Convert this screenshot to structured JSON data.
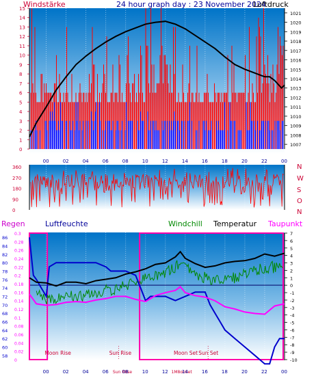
{
  "header": {
    "left_label": "Windstärke",
    "title": "24 hour graph day : 23 November 2024",
    "right_label": "Luftdruck"
  },
  "colors": {
    "wind_red": "#ff0000",
    "wind_blue": "#0000ff",
    "axis_red": "#cc0033",
    "axis_blue": "#000099",
    "humidity_blue": "#0000cc",
    "windchill_green": "#008800",
    "dewpoint_magenta": "#ff00ff",
    "temperature_black": "#000000"
  },
  "chart_data": [
    {
      "id": "wind-pressure",
      "type": "bar",
      "title": "24 hour graph day : 23 November 2024",
      "x_ticks": [
        "00",
        "02",
        "04",
        "06",
        "08",
        "10",
        "12",
        "14",
        "16",
        "18",
        "20",
        "22",
        "00"
      ],
      "left_axis": {
        "label": "Windstärke",
        "ticks": [
          0,
          1,
          2,
          3,
          4,
          5,
          6,
          7,
          8,
          9,
          10,
          11,
          12,
          13,
          14,
          15
        ],
        "ylim": [
          0,
          15
        ]
      },
      "right_axis": {
        "label": "Luftdruck",
        "ticks": [
          1007,
          1008,
          1009,
          1010,
          1011,
          1012,
          1013,
          1014,
          1015,
          1016,
          1017,
          1018,
          1019,
          1020,
          1021
        ],
        "ylim": [
          1006.5,
          1021.5
        ]
      },
      "pressure_series": {
        "name": "Luftdruck",
        "hours": [
          -1.7,
          -1,
          0,
          1,
          2,
          3,
          4,
          5,
          6,
          7,
          8,
          9,
          9.5,
          10,
          11,
          12,
          13,
          14,
          15,
          16,
          17,
          18,
          19,
          20,
          21,
          22,
          22.5,
          23,
          23.7,
          24
        ],
        "values": [
          1007.8,
          1009.3,
          1011.0,
          1012.8,
          1014.2,
          1015.5,
          1016.4,
          1017.2,
          1017.9,
          1018.5,
          1019.0,
          1019.4,
          1019.6,
          1019.8,
          1020.0,
          1020.1,
          1019.8,
          1019.3,
          1018.6,
          1017.9,
          1017.2,
          1016.3,
          1015.5,
          1015.0,
          1014.6,
          1014.2,
          1014.2,
          1013.8,
          1013.0,
          1013.3
        ]
      },
      "wind_gust_level": 5,
      "wind_avg_level": 3
    },
    {
      "id": "wind-direction",
      "type": "line",
      "y_ticks": [
        0,
        90,
        180,
        270,
        360
      ],
      "ylim": [
        0,
        360
      ],
      "direction_labels": [
        "N",
        "W",
        "S",
        "O",
        "N"
      ]
    },
    {
      "id": "rain-humidity-temp",
      "type": "line",
      "x_ticks": [
        "00",
        "02",
        "04",
        "06",
        "08",
        "10",
        "12",
        "14",
        "16",
        "18",
        "20",
        "22",
        "00"
      ],
      "humidity_axis": {
        "label": "Luftfeuchte",
        "ticks": [
          58,
          60,
          62,
          64,
          66,
          68,
          70,
          72,
          74,
          76,
          78,
          80,
          82,
          84,
          86
        ],
        "ylim": [
          57,
          87
        ]
      },
      "rain_axis": {
        "label": "Regen",
        "ticks": [
          0,
          0.02,
          0.04,
          0.06,
          0.08,
          0.1,
          0.12,
          0.14,
          0.16,
          0.18,
          0.2,
          0.22,
          0.24,
          0.26,
          0.28,
          0.3
        ],
        "ylim": [
          0,
          0.3
        ]
      },
      "temp_axis": {
        "ticks": [
          7,
          6,
          5,
          4,
          3,
          2,
          1,
          0,
          -1,
          -2,
          -3,
          -4,
          -5,
          -6,
          -7,
          -8,
          -9,
          -10
        ],
        "ylim": [
          -10,
          7
        ]
      },
      "legend": {
        "windchill": "Windchill",
        "temperature": "Temperatur",
        "dewpoint": "Taupunkt"
      },
      "temperature": {
        "hours": [
          -1.7,
          -1,
          0,
          1,
          2,
          3,
          4,
          5,
          6,
          7,
          8,
          9,
          10,
          11,
          12,
          13,
          13.5,
          14,
          15,
          16,
          17,
          18,
          19,
          20,
          21,
          22,
          23,
          24
        ],
        "values": [
          1.0,
          0.4,
          0.3,
          -0.1,
          0.4,
          0.4,
          0.2,
          0.6,
          0.8,
          1.0,
          1.5,
          1.8,
          2.2,
          2.8,
          3.0,
          3.8,
          4.5,
          3.6,
          2.9,
          2.4,
          2.6,
          3.0,
          3.2,
          3.3,
          3.6,
          4.2,
          3.9,
          4.3
        ]
      },
      "windchill": {
        "hours": [
          -1.7,
          -1,
          0,
          1,
          2,
          3,
          4,
          5,
          6,
          7,
          8,
          9,
          10,
          11,
          12,
          13,
          13.5,
          14,
          15,
          16,
          17,
          18,
          19,
          20,
          21,
          22,
          23,
          24
        ],
        "values": [
          0.5,
          -0.5,
          -1.0,
          -0.9,
          -0.3,
          -0.8,
          -0.6,
          -0.3,
          0.1,
          0.3,
          0.8,
          1.2,
          1.6,
          2.2,
          2.5,
          3.2,
          4.0,
          3.1,
          2.4,
          1.8,
          1.5,
          1.5,
          1.8,
          2.2,
          2.8,
          3.2,
          3.2,
          3.5
        ]
      },
      "dewpoint": {
        "hours": [
          -1.7,
          -1,
          0,
          1,
          2,
          3,
          4,
          5,
          6,
          7,
          8,
          9,
          10,
          11,
          12,
          13,
          13.5,
          14,
          15,
          16,
          17,
          18,
          19,
          20,
          21,
          22,
          23,
          24
        ],
        "values": [
          -1.2,
          -2.5,
          -2.7,
          -2.6,
          -2.3,
          -2.2,
          -2.3,
          -2.0,
          -1.8,
          -1.5,
          -1.5,
          -1.9,
          -2.2,
          -1.4,
          -1.0,
          -0.7,
          -0.2,
          -1.0,
          -1.4,
          -1.6,
          -2.1,
          -2.9,
          -3.2,
          -3.6,
          -3.8,
          -3.9,
          -2.8,
          -2.5
        ]
      },
      "humidity": {
        "hours": [
          -1.7,
          -1.3,
          -1,
          -0.5,
          0,
          0.3,
          1,
          3,
          5,
          6,
          6.5,
          7,
          8,
          9,
          9.5,
          10,
          10.5,
          11,
          12,
          13,
          14,
          15,
          16,
          16.5,
          17,
          17.5,
          18,
          19,
          20,
          21,
          22,
          22.5,
          23,
          23.5,
          24
        ],
        "values": [
          86,
          77,
          76,
          74,
          72,
          79,
          80,
          80,
          80,
          79,
          78,
          78,
          78,
          77,
          74,
          71,
          72,
          72,
          72,
          71,
          72,
          73,
          73,
          70,
          68,
          66,
          64,
          62,
          60,
          58,
          56,
          56,
          60,
          62,
          62
        ]
      },
      "rain": {
        "value": 0
      },
      "annotations": [
        {
          "label": "Moon Rise",
          "hour": 0.8
        },
        {
          "label": "Sun Rise",
          "hour": 7.3
        },
        {
          "label": "Sun Set",
          "hour": 16.3
        },
        {
          "label": "Moon Set",
          "hour": 13.8
        }
      ],
      "tick_overlays": [
        "Sun R8se",
        "1M8onSet"
      ]
    }
  ]
}
